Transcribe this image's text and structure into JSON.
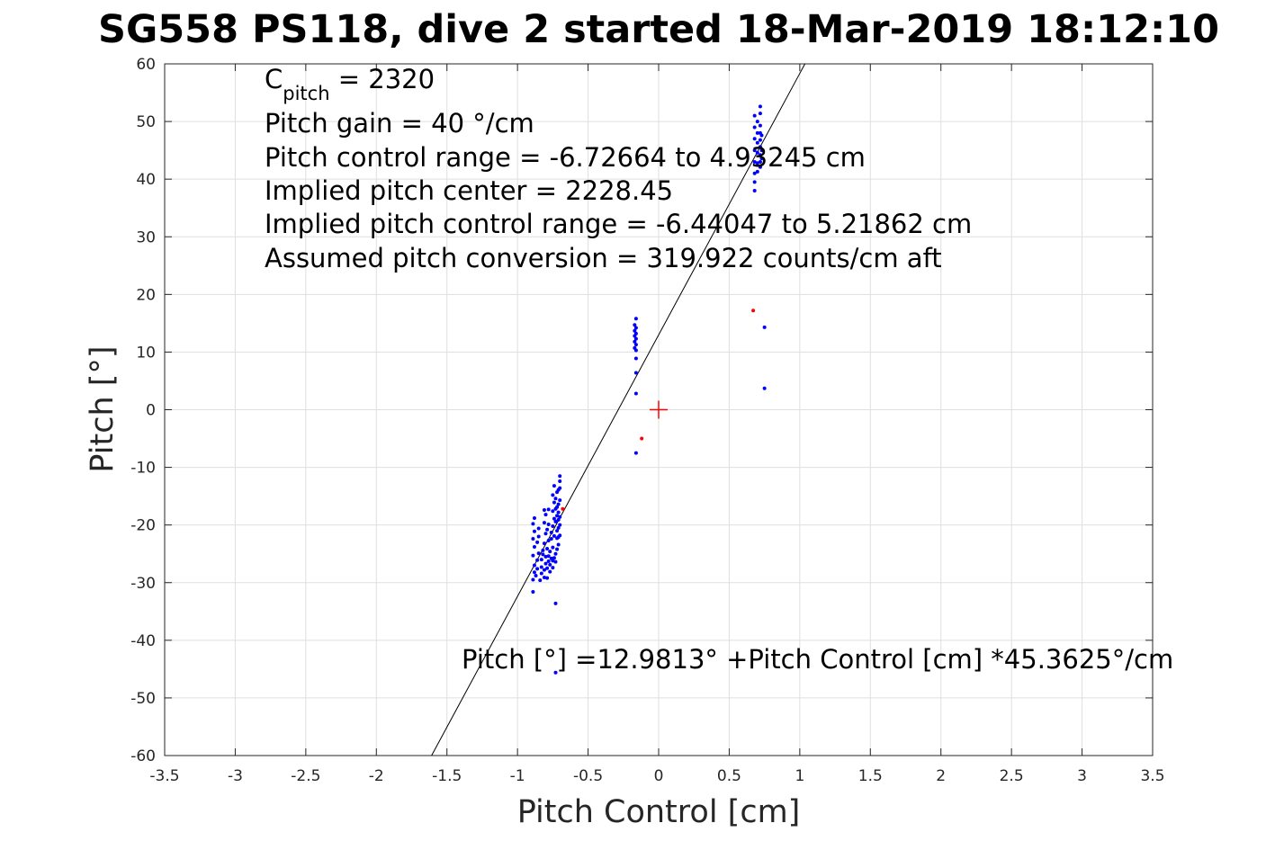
{
  "chart_data": {
    "type": "scatter",
    "title": "SG558 PS118, dive 2 started 18-Mar-2019 18:12:10",
    "xlabel": "Pitch Control [cm]",
    "ylabel": "Pitch [°]",
    "xlim": [
      -3.5,
      3.5
    ],
    "ylim": [
      -60,
      60
    ],
    "xticks": [
      -3.5,
      -3,
      -2.5,
      -2,
      -1.5,
      -1,
      -0.5,
      0,
      0.5,
      1,
      1.5,
      2,
      2.5,
      3,
      3.5
    ],
    "yticks": [
      -60,
      -50,
      -40,
      -30,
      -20,
      -10,
      0,
      10,
      20,
      30,
      40,
      50,
      60
    ],
    "xtick_labels": [
      "-3.5",
      "-3",
      "-2.5",
      "-2",
      "-1.5",
      "-1",
      "-0.5",
      "0",
      "0.5",
      "1",
      "1.5",
      "2",
      "2.5",
      "3",
      "3.5"
    ],
    "ytick_labels": [
      "-60",
      "-50",
      "-40",
      "-30",
      "-20",
      "-10",
      "0",
      "10",
      "20",
      "30",
      "40",
      "50",
      "60"
    ],
    "grid": true,
    "fit_line": {
      "intercept": 12.9813,
      "slope": 45.3625,
      "color": "#000000"
    },
    "center_marker": {
      "x": 0,
      "y": 0,
      "color": "#ff0000"
    },
    "series": [
      {
        "color": "#0000ff",
        "points": [
          [
            -0.89,
            -31.6
          ],
          [
            -0.89,
            -29.5
          ],
          [
            -0.88,
            -28.2
          ],
          [
            -0.88,
            -27.0
          ],
          [
            -0.89,
            -25.3
          ],
          [
            -0.88,
            -23.8
          ],
          [
            -0.89,
            -22.4
          ],
          [
            -0.88,
            -21.1
          ],
          [
            -0.89,
            -19.8
          ],
          [
            -0.88,
            -18.8
          ],
          [
            -0.87,
            -28.8
          ],
          [
            -0.86,
            -27.6
          ],
          [
            -0.86,
            -26.1
          ],
          [
            -0.85,
            -24.9
          ],
          [
            -0.86,
            -23.0
          ],
          [
            -0.85,
            -22.0
          ],
          [
            -0.85,
            -20.6
          ],
          [
            -0.84,
            -29.6
          ],
          [
            -0.83,
            -28.4
          ],
          [
            -0.83,
            -27.3
          ],
          [
            -0.83,
            -26.0
          ],
          [
            -0.82,
            -25.1
          ],
          [
            -0.82,
            -24.4
          ],
          [
            -0.81,
            -29.1
          ],
          [
            -0.81,
            -27.8
          ],
          [
            -0.8,
            -26.7
          ],
          [
            -0.8,
            -25.5
          ],
          [
            -0.81,
            -23.2
          ],
          [
            -0.8,
            -21.5
          ],
          [
            -0.81,
            -19.6
          ],
          [
            -0.8,
            -18.2
          ],
          [
            -0.81,
            -17.4
          ],
          [
            -0.79,
            -29.2
          ],
          [
            -0.79,
            -27.5
          ],
          [
            -0.78,
            -26.3
          ],
          [
            -0.78,
            -25.4
          ],
          [
            -0.79,
            -24.1
          ],
          [
            -0.78,
            -22.7
          ],
          [
            -0.79,
            -20.8
          ],
          [
            -0.78,
            -19.9
          ],
          [
            -0.78,
            -17.3
          ],
          [
            -0.77,
            -28.1
          ],
          [
            -0.77,
            -26.9
          ],
          [
            -0.76,
            -25.8
          ],
          [
            -0.77,
            -24.6
          ],
          [
            -0.76,
            -22.4
          ],
          [
            -0.76,
            -21.3
          ],
          [
            -0.75,
            -27.4
          ],
          [
            -0.75,
            -26.2
          ],
          [
            -0.74,
            -25.7
          ],
          [
            -0.75,
            -23.9
          ],
          [
            -0.74,
            -21.9
          ],
          [
            -0.75,
            -20.2
          ],
          [
            -0.74,
            -18.9
          ],
          [
            -0.75,
            -17.6
          ],
          [
            -0.74,
            -16.1
          ],
          [
            -0.75,
            -14.8
          ],
          [
            -0.74,
            -13.2
          ],
          [
            -0.73,
            -26.4
          ],
          [
            -0.73,
            -25.0
          ],
          [
            -0.73,
            -19.4
          ],
          [
            -0.73,
            -17.2
          ],
          [
            -0.73,
            -15.4
          ],
          [
            -0.72,
            -24.2
          ],
          [
            -0.72,
            -22.3
          ],
          [
            -0.72,
            -21.0
          ],
          [
            -0.72,
            -18.4
          ],
          [
            -0.72,
            -16.9
          ],
          [
            -0.72,
            -14.3
          ],
          [
            -0.71,
            -23.4
          ],
          [
            -0.71,
            -22.1
          ],
          [
            -0.71,
            -20.5
          ],
          [
            -0.71,
            -19.1
          ],
          [
            -0.71,
            -17.8
          ],
          [
            -0.71,
            -16.4
          ],
          [
            -0.71,
            -13.9
          ],
          [
            -0.7,
            -21.8
          ],
          [
            -0.7,
            -20.0
          ],
          [
            -0.7,
            -18.6
          ],
          [
            -0.7,
            -15.7
          ],
          [
            -0.7,
            -13.6
          ],
          [
            -0.7,
            -12.4
          ],
          [
            -0.7,
            -11.5
          ],
          [
            -0.73,
            -33.6
          ],
          [
            -0.73,
            -45.6
          ],
          [
            -0.16,
            15.8
          ],
          [
            -0.17,
            14.7
          ],
          [
            -0.16,
            14.2
          ],
          [
            -0.17,
            13.7
          ],
          [
            -0.16,
            13.2
          ],
          [
            -0.17,
            12.8
          ],
          [
            -0.16,
            12.3
          ],
          [
            -0.17,
            11.8
          ],
          [
            -0.16,
            11.3
          ],
          [
            -0.17,
            10.7
          ],
          [
            -0.16,
            10.3
          ],
          [
            -0.16,
            8.9
          ],
          [
            -0.16,
            6.4
          ],
          [
            -0.16,
            2.8
          ],
          [
            -0.16,
            -7.5
          ],
          [
            0.68,
            51.0
          ],
          [
            0.68,
            49.0
          ],
          [
            0.68,
            47.0
          ],
          [
            0.68,
            45.0
          ],
          [
            0.68,
            43.0
          ],
          [
            0.68,
            41.0
          ],
          [
            0.68,
            39.5
          ],
          [
            0.68,
            38.0
          ],
          [
            0.7,
            50.0
          ],
          [
            0.7,
            48.0
          ],
          [
            0.7,
            46.3
          ],
          [
            0.7,
            44.6
          ],
          [
            0.7,
            42.8
          ],
          [
            0.7,
            41.3
          ],
          [
            0.72,
            52.6
          ],
          [
            0.72,
            51.4
          ],
          [
            0.72,
            49.3
          ],
          [
            0.72,
            48.0
          ],
          [
            0.72,
            46.8
          ],
          [
            0.72,
            45.6
          ],
          [
            0.72,
            44.2
          ],
          [
            0.72,
            43.0
          ],
          [
            0.72,
            42.1
          ],
          [
            0.73,
            47.6
          ],
          [
            0.73,
            45.0
          ],
          [
            0.73,
            43.6
          ],
          [
            0.75,
            14.3
          ],
          [
            0.75,
            3.7
          ]
        ]
      },
      {
        "color": "#ff0000",
        "points": [
          [
            -0.12,
            -5.0
          ],
          [
            0.67,
            17.2
          ],
          [
            -0.68,
            -17.2
          ]
        ]
      }
    ]
  },
  "annotations": {
    "line1_base": "C",
    "line1_sub": "pitch",
    "line1_rest": " = 2320",
    "line2": "Pitch gain = 40 °/cm",
    "line3": "Pitch control range = -6.72664 to 4.93245 cm",
    "line4": "Implied pitch center = 2228.45",
    "line5": "Implied pitch control range = -6.44047 to 5.21862 cm",
    "line6": "Assumed pitch conversion = 319.922 counts/cm aft",
    "fit_equation": "Pitch [°] =12.9813° +Pitch Control [cm] *45.3625°/cm"
  }
}
